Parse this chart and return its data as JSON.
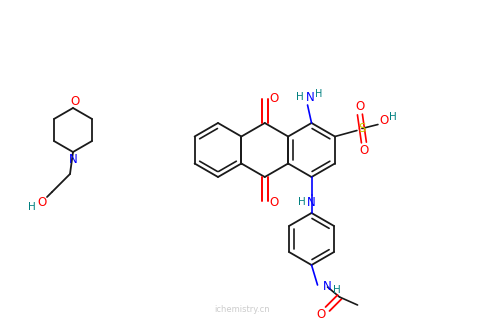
{
  "bg_color": "#ffffff",
  "bond_color": "#1a1a1a",
  "colors": {
    "N": "#0000ff",
    "O": "#ff0000",
    "S": "#cccc00",
    "H": "#008080"
  },
  "figsize": [
    4.84,
    3.23
  ],
  "dpi": 100,
  "watermark": "ichemistry.cn",
  "watermark_color": "#cccccc"
}
